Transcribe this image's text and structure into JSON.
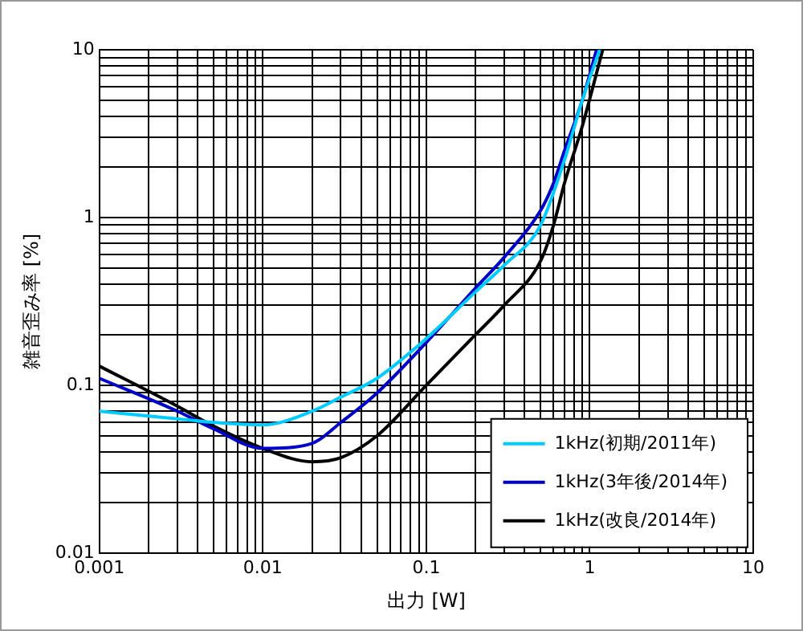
{
  "chart_data": {
    "type": "line",
    "xlabel": "出力 [W]",
    "ylabel": "雑音歪み率 [%]",
    "log": "xy",
    "grid": true,
    "legend": "bottom right",
    "marker": "none",
    "line_style": "solid",
    "xlim": [
      0.001,
      10
    ],
    "ylim": [
      0.01,
      10
    ],
    "xticks": [
      0.001,
      {
        "value": 0.002,
        "label": null
      },
      {
        "value": 0.003,
        "label": null
      },
      {
        "value": 0.004,
        "label": null
      },
      {
        "value": 0.005,
        "label": null
      },
      {
        "value": 0.006,
        "label": null
      },
      {
        "value": 0.007,
        "label": null
      },
      {
        "value": 0.008,
        "label": null
      },
      {
        "value": 0.009,
        "label": null
      },
      0.01,
      {
        "value": 0.02,
        "label": null
      },
      {
        "value": 0.03,
        "label": null
      },
      {
        "value": 0.04,
        "label": null
      },
      {
        "value": 0.05,
        "label": null
      },
      {
        "value": 0.06,
        "label": null
      },
      {
        "value": 0.07,
        "label": null
      },
      {
        "value": 0.08,
        "label": null
      },
      {
        "value": 0.09,
        "label": null
      },
      0.1,
      {
        "value": 0.2,
        "label": null
      },
      {
        "value": 0.3,
        "label": null
      },
      {
        "value": 0.4,
        "label": null
      },
      {
        "value": 0.5,
        "label": null
      },
      {
        "value": 0.6,
        "label": null
      },
      {
        "value": 0.7,
        "label": null
      },
      {
        "value": 0.8,
        "label": null
      },
      {
        "value": 0.9,
        "label": null
      },
      1,
      {
        "value": 2,
        "label": null
      },
      {
        "value": 3,
        "label": null
      },
      {
        "value": 4,
        "label": null
      },
      {
        "value": 5,
        "label": null
      },
      {
        "value": 6,
        "label": null
      },
      {
        "value": 7,
        "label": null
      },
      {
        "value": 8,
        "label": null
      },
      {
        "value": 9,
        "label": null
      },
      10
    ],
    "yticks": [
      0.01,
      {
        "value": 0.02,
        "label": null
      },
      {
        "value": 0.03,
        "label": null
      },
      {
        "value": 0.04,
        "label": null
      },
      {
        "value": 0.05,
        "label": null
      },
      {
        "value": 0.06,
        "label": null
      },
      {
        "value": 0.07,
        "label": null
      },
      {
        "value": 0.08,
        "label": null
      },
      {
        "value": 0.09,
        "label": null
      },
      0.1,
      {
        "value": 0.2,
        "label": null
      },
      {
        "value": 0.3,
        "label": null
      },
      {
        "value": 0.4,
        "label": null
      },
      {
        "value": 0.5,
        "label": null
      },
      {
        "value": 0.6,
        "label": null
      },
      {
        "value": 0.7,
        "label": null
      },
      {
        "value": 0.8,
        "label": null
      },
      {
        "value": 0.9,
        "label": null
      },
      1,
      {
        "value": 2,
        "label": null
      },
      {
        "value": 3,
        "label": null
      },
      {
        "value": 4,
        "label": null
      },
      {
        "value": 5,
        "label": null
      },
      {
        "value": 6,
        "label": null
      },
      {
        "value": 7,
        "label": null
      },
      {
        "value": 8,
        "label": null
      },
      {
        "value": 9,
        "label": null
      },
      10
    ],
    "series": [
      {
        "name": "1kHz(初期/2011年)",
        "color": "#00ccff",
        "x": [
          0.001,
          0.003,
          0.005,
          0.01,
          0.02,
          0.03,
          0.05,
          0.1,
          0.2,
          0.3,
          0.5,
          0.7,
          0.9,
          1.15
        ],
        "values": [
          0.07,
          0.063,
          0.06,
          0.058,
          0.07,
          0.085,
          0.11,
          0.19,
          0.36,
          0.52,
          0.9,
          2.2,
          5,
          10
        ]
      },
      {
        "name": "1kHz(3年後/2014年)",
        "color": "#0000cc",
        "x": [
          0.001,
          0.003,
          0.005,
          0.01,
          0.02,
          0.03,
          0.05,
          0.1,
          0.2,
          0.3,
          0.5,
          0.6,
          0.7,
          0.9,
          1.1
        ],
        "values": [
          0.11,
          0.07,
          0.055,
          0.042,
          0.045,
          0.06,
          0.09,
          0.18,
          0.38,
          0.58,
          1.1,
          1.6,
          2.5,
          5,
          10
        ]
      },
      {
        "name": "1kHz(改良/2014年)",
        "color": "#000000",
        "x": [
          0.001,
          0.003,
          0.005,
          0.01,
          0.02,
          0.03,
          0.05,
          0.1,
          0.2,
          0.3,
          0.5,
          0.6,
          0.7,
          0.9,
          1.2
        ],
        "values": [
          0.13,
          0.075,
          0.057,
          0.042,
          0.035,
          0.037,
          0.05,
          0.1,
          0.2,
          0.3,
          0.55,
          0.9,
          1.6,
          3.5,
          10
        ]
      }
    ]
  }
}
